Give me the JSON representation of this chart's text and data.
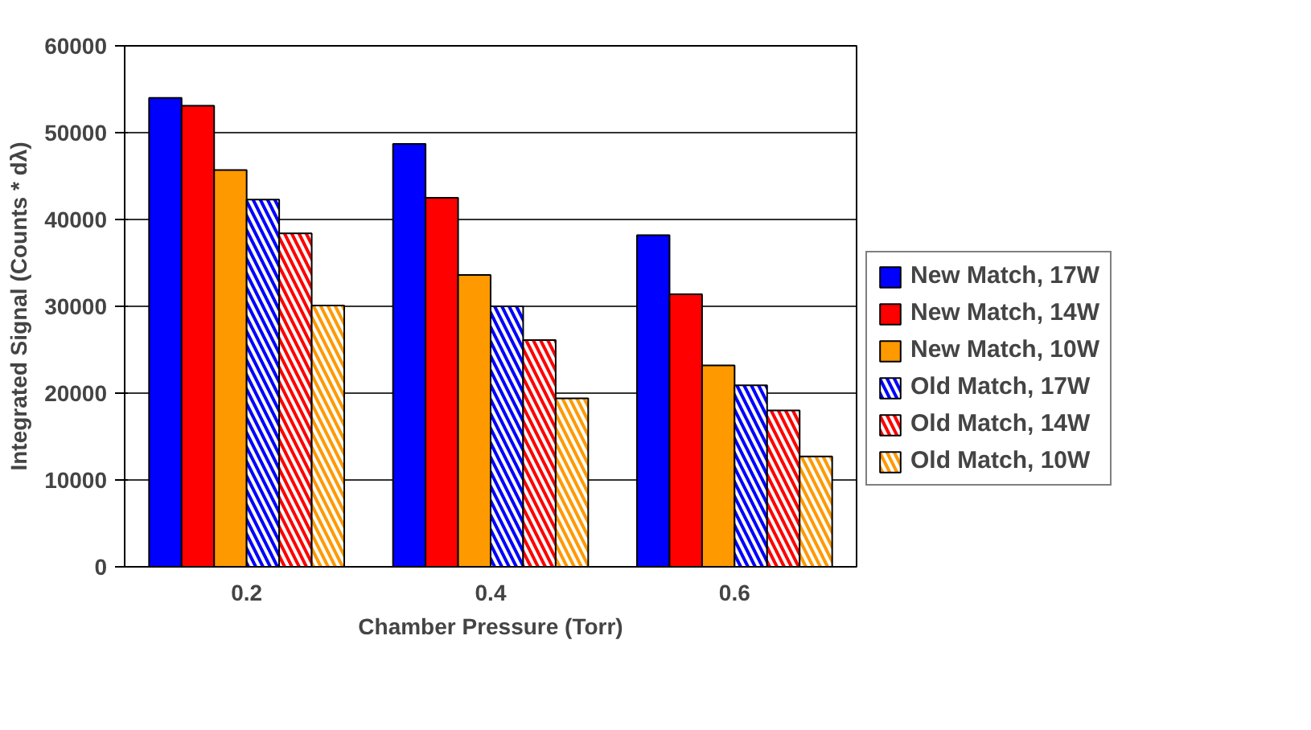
{
  "chart_data": {
    "type": "bar",
    "xlabel": "Chamber Pressure (Torr)",
    "ylabel": "Integrated Signal (Counts * dλ)",
    "categories": [
      "0.2",
      "0.4",
      "0.6"
    ],
    "series": [
      {
        "name": "New Match, 17W",
        "color": "#0000ff",
        "values": [
          54000,
          48700,
          38200
        ]
      },
      {
        "name": "New Match, 14W",
        "color": "#ff0000",
        "values": [
          53100,
          42500,
          31400
        ]
      },
      {
        "name": "New Match, 10W",
        "color": "#ff9900",
        "values": [
          45700,
          33600,
          23200
        ]
      },
      {
        "name": "Old Match, 17W",
        "color": "#0000ff",
        "values": [
          42300,
          30000,
          20900
        ]
      },
      {
        "name": "Old Match, 14W",
        "color": "#ff0000",
        "values": [
          38400,
          26100,
          18000
        ]
      },
      {
        "name": "Old Match, 10W",
        "color": "#ff9900",
        "values": [
          30100,
          19400,
          12700
        ]
      }
    ],
    "ylim": [
      0,
      60000
    ],
    "yticks": [
      0,
      10000,
      20000,
      30000,
      40000,
      50000,
      60000
    ],
    "grid": "y",
    "legend": "right"
  }
}
